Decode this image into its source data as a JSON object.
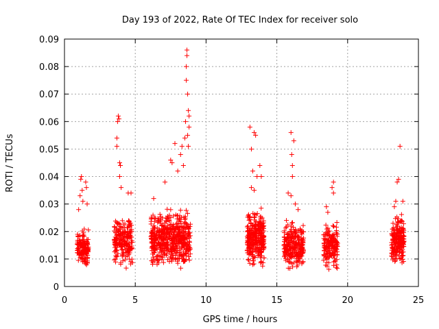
{
  "chart_data": {
    "type": "scatter",
    "title": "Day 193 of 2022, Rate Of TEC Index for receiver solo",
    "xlabel": "GPS time / hours",
    "ylabel": "ROTI / TECUs",
    "xlim": [
      0,
      25
    ],
    "ylim": [
      0,
      0.09
    ],
    "xticks": [
      0,
      5,
      10,
      15,
      20,
      25
    ],
    "yticks": [
      0,
      0.01,
      0.02,
      0.03,
      0.04,
      0.05,
      0.06,
      0.07,
      0.08,
      0.09
    ],
    "xtick_labels": [
      "0",
      "5",
      "10",
      "15",
      "20",
      "25"
    ],
    "ytick_labels": [
      "0",
      "0.01",
      "0.02",
      "0.03",
      "0.04",
      "0.05",
      "0.06",
      "0.07",
      "0.08",
      "0.09"
    ],
    "grid": true,
    "marker": "+",
    "color": "#ff0000",
    "clusters": [
      {
        "x_range": [
          0.9,
          1.7
        ],
        "y_range": [
          0.006,
          0.022
        ],
        "count": 140,
        "peaks": [
          [
            1.0,
            0.028
          ],
          [
            1.1,
            0.033
          ],
          [
            1.15,
            0.039
          ],
          [
            1.2,
            0.04
          ],
          [
            1.25,
            0.035
          ],
          [
            1.3,
            0.031
          ],
          [
            1.5,
            0.038
          ],
          [
            1.55,
            0.036
          ],
          [
            1.6,
            0.03
          ]
        ]
      },
      {
        "x_range": [
          3.5,
          4.8
        ],
        "y_range": [
          0.005,
          0.028
        ],
        "count": 220,
        "peaks": [
          [
            3.7,
            0.054
          ],
          [
            3.7,
            0.051
          ],
          [
            3.75,
            0.06
          ],
          [
            3.8,
            0.062
          ],
          [
            3.85,
            0.061
          ],
          [
            3.9,
            0.045
          ],
          [
            3.95,
            0.044
          ],
          [
            3.9,
            0.04
          ],
          [
            4.0,
            0.036
          ],
          [
            4.5,
            0.034
          ],
          [
            4.7,
            0.034
          ]
        ]
      },
      {
        "x_range": [
          6.1,
          8.9
        ],
        "y_range": [
          0.005,
          0.03
        ],
        "count": 560,
        "peaks": [
          [
            6.3,
            0.032
          ],
          [
            7.1,
            0.038
          ],
          [
            7.5,
            0.046
          ],
          [
            7.6,
            0.045
          ],
          [
            7.8,
            0.052
          ],
          [
            8.0,
            0.042
          ],
          [
            8.2,
            0.048
          ],
          [
            8.3,
            0.051
          ],
          [
            8.4,
            0.044
          ],
          [
            8.5,
            0.054
          ],
          [
            8.55,
            0.06
          ],
          [
            8.6,
            0.075
          ],
          [
            8.6,
            0.08
          ],
          [
            8.65,
            0.084
          ],
          [
            8.65,
            0.086
          ],
          [
            8.7,
            0.07
          ],
          [
            8.75,
            0.064
          ],
          [
            8.8,
            0.062
          ],
          [
            8.8,
            0.058
          ],
          [
            8.7,
            0.055
          ],
          [
            8.75,
            0.051
          ]
        ]
      },
      {
        "x_range": [
          12.9,
          14.1
        ],
        "y_range": [
          0.005,
          0.03
        ],
        "count": 320,
        "peaks": [
          [
            13.1,
            0.058
          ],
          [
            13.2,
            0.05
          ],
          [
            13.4,
            0.056
          ],
          [
            13.5,
            0.055
          ],
          [
            13.3,
            0.042
          ],
          [
            13.6,
            0.04
          ],
          [
            13.8,
            0.044
          ],
          [
            13.9,
            0.04
          ],
          [
            13.2,
            0.036
          ],
          [
            13.4,
            0.035
          ]
        ]
      },
      {
        "x_range": [
          15.5,
          16.9
        ],
        "y_range": [
          0.004,
          0.026
        ],
        "count": 260,
        "peaks": [
          [
            15.8,
            0.034
          ],
          [
            16.0,
            0.056
          ],
          [
            16.05,
            0.048
          ],
          [
            16.1,
            0.04
          ],
          [
            16.1,
            0.044
          ],
          [
            16.2,
            0.053
          ],
          [
            16.0,
            0.033
          ],
          [
            16.3,
            0.03
          ],
          [
            16.5,
            0.028
          ]
        ]
      },
      {
        "x_range": [
          18.3,
          19.3
        ],
        "y_range": [
          0.005,
          0.025
        ],
        "count": 170,
        "peaks": [
          [
            18.5,
            0.029
          ],
          [
            18.9,
            0.036
          ],
          [
            19.0,
            0.038
          ],
          [
            19.0,
            0.034
          ],
          [
            18.6,
            0.027
          ]
        ]
      },
      {
        "x_range": [
          23.1,
          24.0
        ],
        "y_range": [
          0.006,
          0.028
        ],
        "count": 220,
        "peaks": [
          [
            23.4,
            0.031
          ],
          [
            23.5,
            0.038
          ],
          [
            23.6,
            0.039
          ],
          [
            23.7,
            0.051
          ],
          [
            23.9,
            0.031
          ],
          [
            23.3,
            0.029
          ]
        ]
      }
    ]
  }
}
